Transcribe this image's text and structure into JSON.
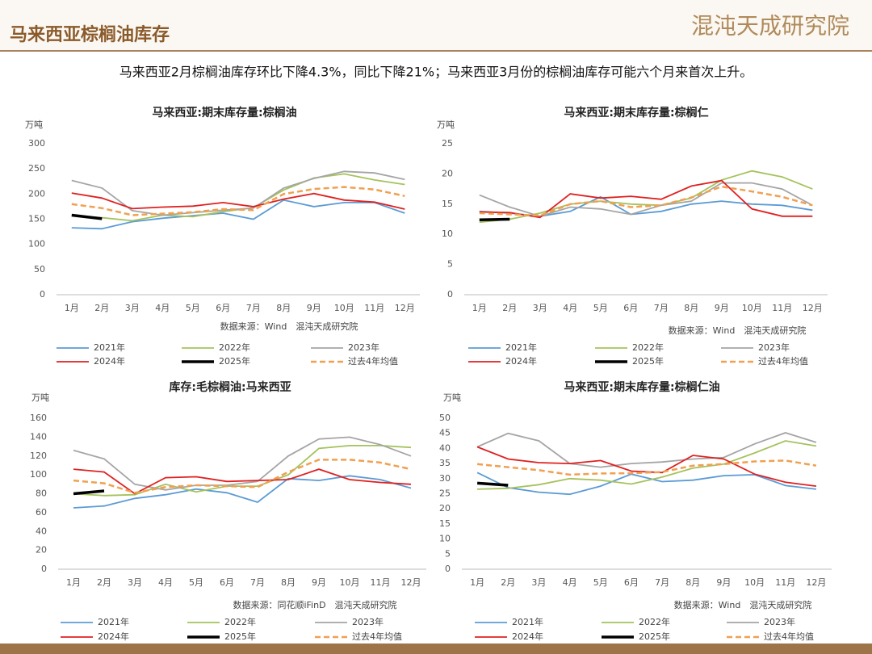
{
  "header": {
    "title": "马来西亚棕榈油库存",
    "logo": "混沌天成研究院"
  },
  "summary": "马来西亚2月棕榈油库存环比下降4.3%，同比下降21%；马来西亚3月份的棕榈油库存可能六个月来首次上升。",
  "chart_data": [
    {
      "type": "line",
      "title": "马来西亚:期末库存量:棕榈油",
      "unit": "万吨",
      "source": "数据来源：Wind　混沌天成研究院",
      "categories": [
        "1月",
        "2月",
        "3月",
        "4月",
        "5月",
        "6月",
        "7月",
        "8月",
        "9月",
        "10月",
        "11月",
        "12月"
      ],
      "ylim": [
        0,
        300
      ],
      "yticks": [
        0,
        50,
        100,
        150,
        200,
        250,
        300
      ],
      "series": [
        {
          "name": "2021年",
          "color": "#5b9bd5",
          "values": [
            133,
            131,
            145,
            152,
            157,
            162,
            150,
            188,
            175,
            183,
            183,
            162
          ]
        },
        {
          "name": "2022年",
          "color": "#a5c25c",
          "values": [
            157,
            153,
            147,
            158,
            155,
            165,
            173,
            208,
            232,
            240,
            228,
            219
          ]
        },
        {
          "name": "2023年",
          "color": "#a5a5a5",
          "values": [
            227,
            212,
            167,
            158,
            163,
            168,
            172,
            212,
            231,
            245,
            242,
            229
          ]
        },
        {
          "name": "2024年",
          "color": "#e02020",
          "values": [
            202,
            192,
            171,
            174,
            176,
            183,
            175,
            190,
            201,
            188,
            184,
            170
          ]
        },
        {
          "name": "2025年",
          "color": "#000000",
          "values": [
            158,
            151,
            null,
            null,
            null,
            null,
            null,
            null,
            null,
            null,
            null,
            null
          ]
        },
        {
          "name": "过去4年均值",
          "color": "#f0a050",
          "dashed": true,
          "values": [
            180,
            172,
            158,
            161,
            164,
            170,
            168,
            200,
            210,
            214,
            209,
            196
          ]
        }
      ]
    },
    {
      "type": "line",
      "title": "马来西亚:期末库存量:棕榈仁",
      "unit": "万吨",
      "source": "数据来源：Wind　混沌天成研究院",
      "categories": [
        "1月",
        "2月",
        "3月",
        "4月",
        "5月",
        "6月",
        "7月",
        "8月",
        "9月",
        "10月",
        "11月",
        "12月"
      ],
      "ylim": [
        0,
        25
      ],
      "yticks": [
        0,
        5,
        10,
        15,
        20,
        25
      ],
      "series": [
        {
          "name": "2021年",
          "color": "#5b9bd5",
          "values": [
            13.8,
            13.5,
            13.0,
            13.8,
            16.2,
            13.3,
            13.8,
            15.0,
            15.5,
            15.0,
            14.8,
            14.0
          ]
        },
        {
          "name": "2022年",
          "color": "#a5c25c",
          "values": [
            12.0,
            12.5,
            13.5,
            15.0,
            15.5,
            15.0,
            14.8,
            16.0,
            19.0,
            20.5,
            19.5,
            17.5
          ]
        },
        {
          "name": "2023年",
          "color": "#a5a5a5",
          "values": [
            16.5,
            14.5,
            13.0,
            14.5,
            14.2,
            13.3,
            14.8,
            15.5,
            18.5,
            18.5,
            17.5,
            14.8
          ]
        },
        {
          "name": "2024年",
          "color": "#e02020",
          "values": [
            13.7,
            13.6,
            12.8,
            16.7,
            16.0,
            16.3,
            15.8,
            18.0,
            18.9,
            14.2,
            13.0,
            13.0
          ]
        },
        {
          "name": "2025年",
          "color": "#000000",
          "values": [
            12.4,
            12.5,
            null,
            null,
            null,
            null,
            null,
            null,
            null,
            null,
            null,
            null
          ]
        },
        {
          "name": "过去4年均值",
          "color": "#f0a050",
          "dashed": true,
          "values": [
            13.5,
            13.3,
            13.1,
            15.0,
            15.5,
            14.5,
            14.8,
            16.1,
            17.9,
            17.1,
            16.2,
            14.8
          ]
        }
      ]
    },
    {
      "type": "line",
      "title": "库存:毛棕榈油:马来西亚",
      "unit": "万吨",
      "source": "数据来源：同花顺iFinD　混沌天成研究院",
      "categories": [
        "1月",
        "2月",
        "3月",
        "4月",
        "5月",
        "6月",
        "7月",
        "8月",
        "9月",
        "10月",
        "11月",
        "12月"
      ],
      "ylim": [
        0,
        160
      ],
      "yticks": [
        0,
        20,
        40,
        60,
        80,
        100,
        120,
        140,
        160
      ],
      "series": [
        {
          "name": "2021年",
          "color": "#5b9bd5",
          "values": [
            65,
            67,
            75,
            79,
            85,
            81,
            71,
            96,
            94,
            99,
            95,
            86
          ]
        },
        {
          "name": "2022年",
          "color": "#a5c25c",
          "values": [
            80,
            78,
            79,
            90,
            82,
            88,
            88,
            100,
            128,
            131,
            131,
            129
          ]
        },
        {
          "name": "2023年",
          "color": "#a5a5a5",
          "values": [
            126,
            117,
            90,
            84,
            89,
            89,
            93,
            120,
            138,
            140,
            132,
            120
          ]
        },
        {
          "name": "2024年",
          "color": "#e02020",
          "values": [
            106,
            103,
            80,
            97,
            98,
            93,
            94,
            95,
            106,
            95,
            92,
            90
          ]
        },
        {
          "name": "2025年",
          "color": "#000000",
          "values": [
            80,
            83,
            null,
            null,
            null,
            null,
            null,
            null,
            null,
            null,
            null,
            null
          ]
        },
        {
          "name": "过去4年均值",
          "color": "#f0a050",
          "dashed": true,
          "values": [
            94,
            91,
            81,
            87,
            89,
            88,
            87,
            103,
            116,
            116,
            113,
            106
          ]
        }
      ]
    },
    {
      "type": "line",
      "title": "马来西亚:期末库存量:棕榈仁油",
      "unit": "万吨",
      "source": "数据来源：Wind　混沌天成研究院",
      "categories": [
        "1月",
        "2月",
        "3月",
        "4月",
        "5月",
        "6月",
        "7月",
        "8月",
        "9月",
        "10月",
        "11月",
        "12月"
      ],
      "ylim": [
        0,
        50
      ],
      "yticks": [
        0,
        5,
        10,
        15,
        20,
        25,
        30,
        35,
        40,
        45,
        50
      ],
      "series": [
        {
          "name": "2021年",
          "color": "#5b9bd5",
          "values": [
            32,
            27,
            25.5,
            24.8,
            27.5,
            31.5,
            29,
            29.5,
            31,
            31.3,
            27.7,
            26.5
          ]
        },
        {
          "name": "2022年",
          "color": "#a5c25c",
          "values": [
            26.5,
            26.8,
            28,
            30,
            29.5,
            28.2,
            30.5,
            33.5,
            34.8,
            38.5,
            42.5,
            40.8
          ]
        },
        {
          "name": "2023年",
          "color": "#a5a5a5",
          "values": [
            40.5,
            45,
            42.5,
            35,
            33.8,
            35,
            35.5,
            36.5,
            37,
            41.5,
            45.2,
            42
          ]
        },
        {
          "name": "2024年",
          "color": "#e02020",
          "values": [
            40.5,
            36.5,
            35.3,
            35,
            36,
            32.5,
            32,
            37.7,
            36.5,
            31.5,
            28.8,
            27.5
          ]
        },
        {
          "name": "2025年",
          "color": "#000000",
          "values": [
            28.5,
            27.8,
            null,
            null,
            null,
            null,
            null,
            null,
            null,
            null,
            null,
            null
          ]
        },
        {
          "name": "过去4年均值",
          "color": "#f0a050",
          "dashed": true,
          "values": [
            34.8,
            33.8,
            32.8,
            31.3,
            31.7,
            31.8,
            32.2,
            34.3,
            34.8,
            35.7,
            36,
            34.3
          ]
        }
      ]
    }
  ]
}
